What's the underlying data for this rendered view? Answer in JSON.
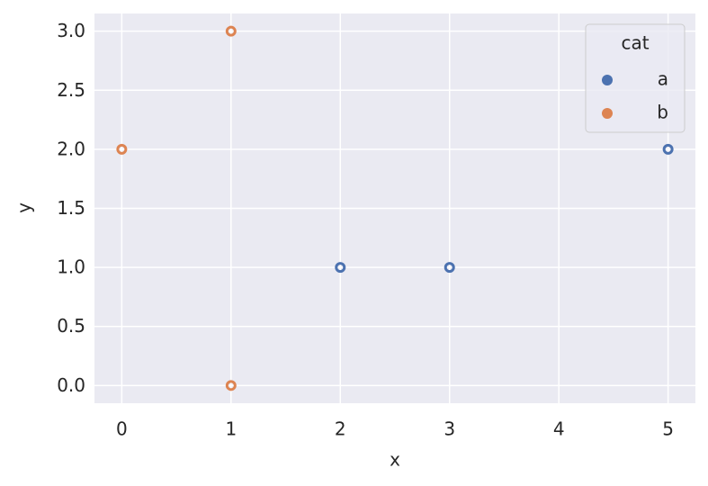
{
  "chart_data": {
    "type": "scatter",
    "x_label": "x",
    "y_label": "y",
    "legend_title": "cat",
    "legend_position": "upper right",
    "series": [
      {
        "name": "a",
        "color": "#4c72b0",
        "x": [
          2,
          3,
          5
        ],
        "values": [
          1,
          1,
          2
        ]
      },
      {
        "name": "b",
        "color": "#dd8452",
        "x": [
          0,
          1,
          1
        ],
        "values": [
          2,
          3,
          0
        ]
      }
    ],
    "xlim": [
      -0.25,
      5.25
    ],
    "ylim": [
      -0.15,
      3.15
    ],
    "xticks": [
      0,
      1,
      2,
      3,
      4,
      5
    ],
    "yticks": [
      {
        "value": 0,
        "label": "0.0"
      },
      0.5,
      {
        "value": 1,
        "label": "1.0"
      },
      1.5,
      {
        "value": 2,
        "label": "2.0"
      },
      2.5,
      {
        "value": 3,
        "label": "3.0"
      }
    ],
    "grid": true
  }
}
